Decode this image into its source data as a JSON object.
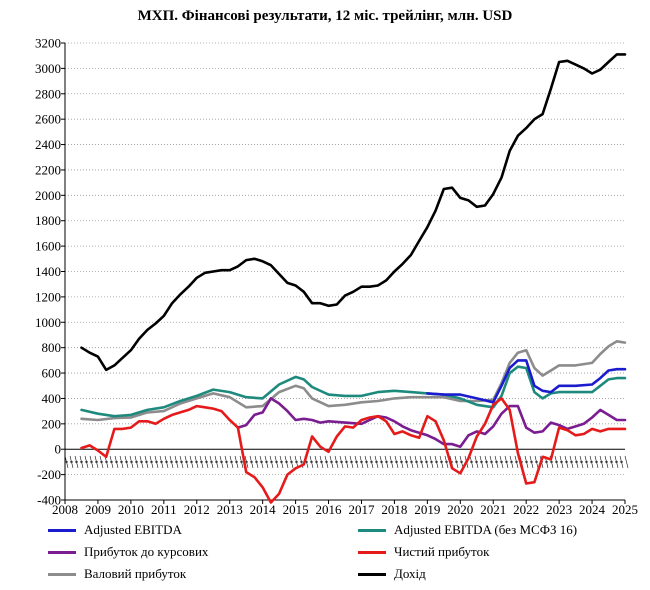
{
  "chart_data": {
    "type": "line",
    "title": "МХП. Фінансові результати, 12 міс. трейлінг, млн. USD",
    "ylim": [
      -400,
      3200
    ],
    "yticks": [
      -400,
      -200,
      0,
      200,
      400,
      600,
      800,
      1000,
      1200,
      1400,
      1600,
      1800,
      2000,
      2200,
      2400,
      2600,
      2800,
      3000,
      3200
    ],
    "xlim": [
      2008,
      2025
    ],
    "xticks": [
      "2008",
      "2009",
      "2010",
      "2011",
      "2012",
      "2013",
      "2014",
      "2015",
      "2016",
      "2017",
      "2018",
      "2019",
      "2020",
      "2021",
      "2022",
      "2023",
      "2024",
      "2025"
    ],
    "grid": "horizontal dotted",
    "series": [
      {
        "name": "Дохід",
        "color": "#000000",
        "x": [
          2008.5,
          2008.75,
          2009,
          2009.25,
          2009.5,
          2009.75,
          2010,
          2010.25,
          2010.5,
          2010.75,
          2011,
          2011.25,
          2011.5,
          2011.75,
          2012,
          2012.25,
          2012.5,
          2012.75,
          2013,
          2013.25,
          2013.5,
          2013.75,
          2014,
          2014.25,
          2014.5,
          2014.75,
          2015,
          2015.25,
          2015.5,
          2015.75,
          2016,
          2016.25,
          2016.5,
          2016.75,
          2017,
          2017.25,
          2017.5,
          2017.75,
          2018,
          2018.25,
          2018.5,
          2018.75,
          2019,
          2019.25,
          2019.5,
          2019.75,
          2020,
          2020.25,
          2020.5,
          2020.75,
          2021,
          2021.25,
          2021.5,
          2021.75,
          2022,
          2022.25,
          2022.5,
          2022.75,
          2023,
          2023.25,
          2023.5,
          2023.75,
          2024,
          2024.25,
          2024.5,
          2024.75,
          2025
        ],
        "values": [
          800,
          760,
          730,
          625,
          660,
          720,
          780,
          870,
          940,
          990,
          1050,
          1150,
          1220,
          1280,
          1350,
          1390,
          1400,
          1410,
          1410,
          1440,
          1490,
          1500,
          1480,
          1450,
          1380,
          1310,
          1290,
          1240,
          1150,
          1150,
          1130,
          1140,
          1210,
          1240,
          1280,
          1280,
          1290,
          1330,
          1400,
          1460,
          1530,
          1640,
          1750,
          1880,
          2050,
          2060,
          1980,
          1960,
          1910,
          1920,
          2010,
          2140,
          2350,
          2470,
          2530,
          2600,
          2640,
          2840,
          3050,
          3060,
          3030,
          3000,
          2960,
          2990,
          3050,
          3110,
          3110
        ]
      },
      {
        "name": "Валовий прибуток",
        "color": "#8c8c8c",
        "x": [
          2008.5,
          2009,
          2009.5,
          2010,
          2010.5,
          2011,
          2011.5,
          2012,
          2012.5,
          2013,
          2013.5,
          2014,
          2014.5,
          2015,
          2015.25,
          2015.5,
          2016,
          2016.5,
          2017,
          2017.5,
          2018,
          2018.5,
          2019,
          2019.5,
          2020,
          2020.5,
          2021,
          2021.25,
          2021.5,
          2021.75,
          2022,
          2022.25,
          2022.5,
          2022.75,
          2023,
          2023.5,
          2024,
          2024.25,
          2024.5,
          2024.75,
          2025
        ],
        "values": [
          240,
          230,
          245,
          250,
          290,
          300,
          360,
          400,
          440,
          410,
          330,
          340,
          450,
          500,
          480,
          400,
          340,
          350,
          370,
          380,
          400,
          410,
          410,
          410,
          380,
          380,
          390,
          520,
          680,
          760,
          780,
          640,
          580,
          620,
          660,
          660,
          680,
          750,
          810,
          850,
          840
        ]
      },
      {
        "name": "Adjusted EBITDA (без МСФЗ 16)",
        "color": "#1e8a7e",
        "x": [
          2008.5,
          2009,
          2009.5,
          2010,
          2010.5,
          2011,
          2011.5,
          2012,
          2012.5,
          2013,
          2013.5,
          2014,
          2014.5,
          2015,
          2015.25,
          2015.5,
          2016,
          2016.5,
          2017,
          2017.5,
          2018,
          2018.5,
          2019,
          2019.5,
          2020,
          2020.5,
          2021,
          2021.25,
          2021.5,
          2021.75,
          2022,
          2022.25,
          2022.5,
          2022.75,
          2023,
          2023.5,
          2024,
          2024.25,
          2024.5,
          2024.75,
          2025
        ],
        "values": [
          310,
          280,
          260,
          270,
          310,
          330,
          380,
          420,
          470,
          450,
          410,
          400,
          510,
          570,
          550,
          490,
          430,
          420,
          420,
          450,
          460,
          450,
          440,
          430,
          400,
          350,
          330,
          420,
          600,
          650,
          640,
          450,
          400,
          440,
          450,
          450,
          450,
          500,
          550,
          560,
          560
        ]
      },
      {
        "name": "Adjusted EBITDA",
        "color": "#1c1ccf",
        "x": [
          2019,
          2019.5,
          2020,
          2020.5,
          2021,
          2021.25,
          2021.5,
          2021.75,
          2022,
          2022.25,
          2022.5,
          2022.75,
          2023,
          2023.5,
          2024,
          2024.25,
          2024.5,
          2024.75,
          2025
        ],
        "values": [
          440,
          430,
          430,
          400,
          370,
          500,
          640,
          700,
          700,
          500,
          460,
          450,
          500,
          500,
          510,
          560,
          620,
          630,
          630
        ]
      },
      {
        "name": "Прибуток до курсових",
        "color": "#7a1d91",
        "x": [
          2013.25,
          2013.5,
          2013.75,
          2014,
          2014.25,
          2014.5,
          2014.75,
          2015,
          2015.25,
          2015.5,
          2015.75,
          2016,
          2016.5,
          2017,
          2017.25,
          2017.5,
          2017.75,
          2018,
          2018.25,
          2018.5,
          2018.75,
          2019,
          2019.25,
          2019.5,
          2019.75,
          2020,
          2020.25,
          2020.5,
          2020.75,
          2021,
          2021.25,
          2021.5,
          2021.75,
          2022,
          2022.25,
          2022.5,
          2022.75,
          2023,
          2023.25,
          2023.5,
          2023.75,
          2024,
          2024.25,
          2024.5,
          2024.75,
          2025
        ],
        "values": [
          170,
          190,
          270,
          290,
          400,
          360,
          300,
          230,
          240,
          230,
          210,
          220,
          210,
          200,
          230,
          260,
          250,
          220,
          180,
          150,
          130,
          110,
          80,
          40,
          40,
          20,
          110,
          140,
          120,
          180,
          280,
          340,
          340,
          170,
          130,
          140,
          210,
          190,
          160,
          180,
          200,
          250,
          310,
          270,
          230,
          230
        ]
      },
      {
        "name": "Чистий прибуток",
        "color": "#e51b1b",
        "x": [
          2008.5,
          2008.75,
          2009,
          2009.25,
          2009.5,
          2009.75,
          2010,
          2010.25,
          2010.5,
          2010.75,
          2011,
          2011.25,
          2011.5,
          2011.75,
          2012,
          2012.25,
          2012.5,
          2012.75,
          2013,
          2013.25,
          2013.5,
          2013.75,
          2014,
          2014.25,
          2014.5,
          2014.75,
          2015,
          2015.25,
          2015.5,
          2015.75,
          2016,
          2016.25,
          2016.5,
          2016.75,
          2017,
          2017.25,
          2017.5,
          2017.75,
          2018,
          2018.25,
          2018.5,
          2018.75,
          2019,
          2019.25,
          2019.5,
          2019.75,
          2020,
          2020.25,
          2020.5,
          2020.75,
          2021,
          2021.25,
          2021.5,
          2021.75,
          2022,
          2022.25,
          2022.5,
          2022.75,
          2023,
          2023.25,
          2023.5,
          2023.75,
          2024,
          2024.25,
          2024.5,
          2024.75,
          2025
        ],
        "values": [
          10,
          30,
          -10,
          -60,
          160,
          160,
          170,
          220,
          220,
          200,
          240,
          270,
          290,
          310,
          340,
          330,
          320,
          300,
          230,
          170,
          -180,
          -220,
          -300,
          -420,
          -350,
          -200,
          -150,
          -120,
          100,
          20,
          -20,
          100,
          180,
          170,
          230,
          250,
          260,
          220,
          120,
          140,
          110,
          90,
          260,
          220,
          70,
          -150,
          -190,
          -70,
          100,
          200,
          350,
          400,
          310,
          -30,
          -270,
          -260,
          -60,
          -80,
          170,
          150,
          110,
          120,
          160,
          140,
          160,
          160,
          160
        ]
      }
    ]
  },
  "legend": [
    {
      "label": "Adjusted EBITDA",
      "color": "#1c1ccf"
    },
    {
      "label": "Adjusted EBITDA  (без МСФЗ 16)",
      "color": "#1e8a7e"
    },
    {
      "label": "Прибуток до курсових",
      "color": "#7a1d91"
    },
    {
      "label": "Чистий прибуток",
      "color": "#e51b1b"
    },
    {
      "label": "Валовий прибуток",
      "color": "#8c8c8c"
    },
    {
      "label": "Дохід",
      "color": "#000000"
    }
  ]
}
